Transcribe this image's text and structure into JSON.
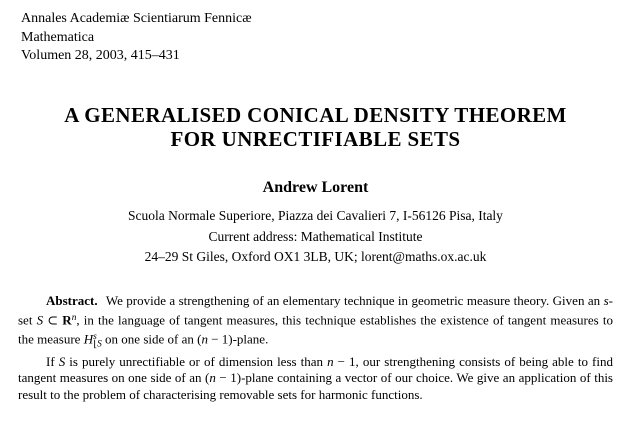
{
  "journal": {
    "name": "Annales Academiæ Scientiarum Fennicæ",
    "series": "Mathematica",
    "volume": "Volumen 28, 2003, 415–431"
  },
  "title": {
    "line1": "A GENERALISED CONICAL DENSITY THEOREM",
    "line2": "FOR UNRECTIFIABLE SETS"
  },
  "author": {
    "name": "Andrew Lorent",
    "affiliation": "Scuola Normale Superiore, Piazza dei Cavalieri 7, I-56126 Pisa, Italy",
    "current_address": "Current address: Mathematical Institute",
    "contact": "24–29 St Giles, Oxford OX1 3LB, UK; lorent@maths.ox.ac.uk"
  },
  "abstract": {
    "p1": [
      {
        "t": "Abstract.",
        "style": "b lbl",
        "name": "abstract-label"
      },
      {
        "t": " We provide a strengthening of an elementary technique in geometric measure theory. Given an "
      },
      {
        "t": "s",
        "style": "i"
      },
      {
        "t": "-set "
      },
      {
        "t": "S",
        "style": "i"
      },
      {
        "t": " ⊂ "
      },
      {
        "t": "R",
        "style": "b"
      },
      {
        "t": "n",
        "style": "sup i"
      },
      {
        "t": ", in the language of tangent measures, this technique establishes the existence of tangent measures to the measure "
      },
      {
        "t": "H",
        "style": "i"
      },
      {
        "t": "s",
        "style": "sup i"
      },
      {
        "t": "⌊",
        "style": "sub tight"
      },
      {
        "t": "S",
        "style": "sub i"
      },
      {
        "t": " on one side of an ("
      },
      {
        "t": "n",
        "style": "i"
      },
      {
        "t": " − 1)-plane."
      }
    ],
    "p2": [
      {
        "t": "If "
      },
      {
        "t": "S",
        "style": "i"
      },
      {
        "t": " is purely unrectifiable or of dimension less than "
      },
      {
        "t": "n",
        "style": "i"
      },
      {
        "t": " − 1, our strengthening consists of being able to find tangent measures on one side of an ("
      },
      {
        "t": "n",
        "style": "i"
      },
      {
        "t": " − 1)-plane containing a vector of our choice. We give an application of this result to the problem of characterising removable sets for harmonic functions."
      }
    ]
  }
}
